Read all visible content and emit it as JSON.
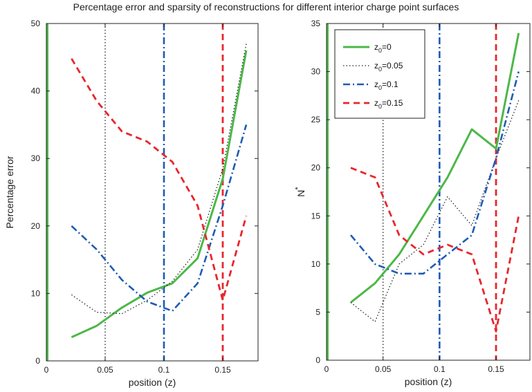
{
  "title": "Percentage error and sparsity of reconstructions for different interior charge point surfaces",
  "colors": {
    "z0": "#4cb848",
    "z005": "#222222",
    "z01": "#1f5bb5",
    "z015": "#e8262c"
  },
  "chart_data": [
    {
      "type": "line",
      "title": "",
      "xlabel": "position (z)",
      "ylabel": "Percentage error",
      "xlim": [
        0,
        0.18
      ],
      "ylim": [
        0,
        50
      ],
      "xticks": [
        0,
        0.05,
        0.1,
        0.15
      ],
      "xtick_labels": [
        "0",
        "0.05",
        "0.1",
        "0.15"
      ],
      "yticks": [
        0,
        10,
        20,
        30,
        40,
        50
      ],
      "ytick_labels": [
        "0",
        "10",
        "20",
        "30",
        "40",
        "50"
      ],
      "grid": false,
      "vlines": [
        {
          "series": "z0=0",
          "x": 0
        },
        {
          "series": "z0=0.05",
          "x": 0.05
        },
        {
          "series": "z0=0.1",
          "x": 0.1
        },
        {
          "series": "z0=0.15",
          "x": 0.15
        }
      ],
      "series": [
        {
          "name": "z0=0",
          "x": [
            0.0214,
            0.0429,
            0.0643,
            0.0857,
            0.1071,
            0.1286,
            0.15,
            0.17
          ],
          "values": [
            3.5,
            5.2,
            7.9,
            10.1,
            11.5,
            15.2,
            27.0,
            46.0
          ]
        },
        {
          "name": "z0=0.05",
          "x": [
            0.0214,
            0.0429,
            0.0643,
            0.0857,
            0.1071,
            0.1286,
            0.15,
            0.17
          ],
          "values": [
            9.8,
            7.2,
            7.0,
            9.0,
            11.8,
            16.5,
            28.5,
            47.0
          ]
        },
        {
          "name": "z0=0.1",
          "x": [
            0.0214,
            0.0429,
            0.0643,
            0.0857,
            0.1071,
            0.1286,
            0.15,
            0.17
          ],
          "values": [
            20.0,
            16.5,
            12.0,
            8.8,
            7.4,
            11.5,
            23.0,
            35.0
          ]
        },
        {
          "name": "z0=0.15",
          "x": [
            0.0214,
            0.0429,
            0.0643,
            0.0857,
            0.1071,
            0.1286,
            0.15,
            0.17
          ],
          "values": [
            44.8,
            38.5,
            34.0,
            32.5,
            29.5,
            23.0,
            9.0,
            21.5
          ]
        }
      ]
    },
    {
      "type": "line",
      "title": "",
      "xlabel": "position (z)",
      "ylabel": "N",
      "ylabel_superscript": "*",
      "xlim": [
        0,
        0.18
      ],
      "ylim": [
        0,
        35
      ],
      "xticks": [
        0,
        0.05,
        0.1,
        0.15
      ],
      "xtick_labels": [
        "0",
        "0.05",
        "0.1",
        "0.15"
      ],
      "yticks": [
        0,
        5,
        10,
        15,
        20,
        25,
        30,
        35
      ],
      "ytick_labels": [
        "0",
        "5",
        "10",
        "15",
        "20",
        "25",
        "30",
        "35"
      ],
      "grid": false,
      "legend": {
        "placement": "top-left",
        "entries": [
          {
            "series": "z0=0",
            "base": "z",
            "sub": "0",
            "rest": "=0"
          },
          {
            "series": "z0=0.05",
            "base": "z",
            "sub": "0",
            "rest": "=0.05"
          },
          {
            "series": "z0=0.1",
            "base": "z",
            "sub": "0",
            "rest": "=0.1"
          },
          {
            "series": "z0=0.15",
            "base": "z",
            "sub": "0",
            "rest": "=0.15"
          }
        ]
      },
      "vlines": [
        {
          "series": "z0=0",
          "x": 0
        },
        {
          "series": "z0=0.05",
          "x": 0.05
        },
        {
          "series": "z0=0.1",
          "x": 0.1
        },
        {
          "series": "z0=0.15",
          "x": 0.15
        }
      ],
      "series": [
        {
          "name": "z0=0",
          "x": [
            0.0214,
            0.0429,
            0.0643,
            0.0857,
            0.1071,
            0.1286,
            0.15,
            0.17
          ],
          "values": [
            6,
            8,
            11,
            15,
            19,
            24,
            22,
            34
          ]
        },
        {
          "name": "z0=0.05",
          "x": [
            0.0214,
            0.0429,
            0.0643,
            0.0857,
            0.1071,
            0.1286,
            0.15,
            0.17
          ],
          "values": [
            6,
            4,
            10,
            12,
            17,
            14,
            21,
            27
          ]
        },
        {
          "name": "z0=0.1",
          "x": [
            0.0214,
            0.0429,
            0.0643,
            0.0857,
            0.1071,
            0.1286,
            0.15,
            0.17
          ],
          "values": [
            13,
            10,
            9,
            9,
            11,
            13,
            21,
            30
          ]
        },
        {
          "name": "z0=0.15",
          "x": [
            0.0214,
            0.0429,
            0.0643,
            0.0857,
            0.1071,
            0.1286,
            0.15,
            0.17
          ],
          "values": [
            20,
            19,
            13,
            11,
            12,
            11,
            3,
            15
          ]
        }
      ]
    }
  ]
}
